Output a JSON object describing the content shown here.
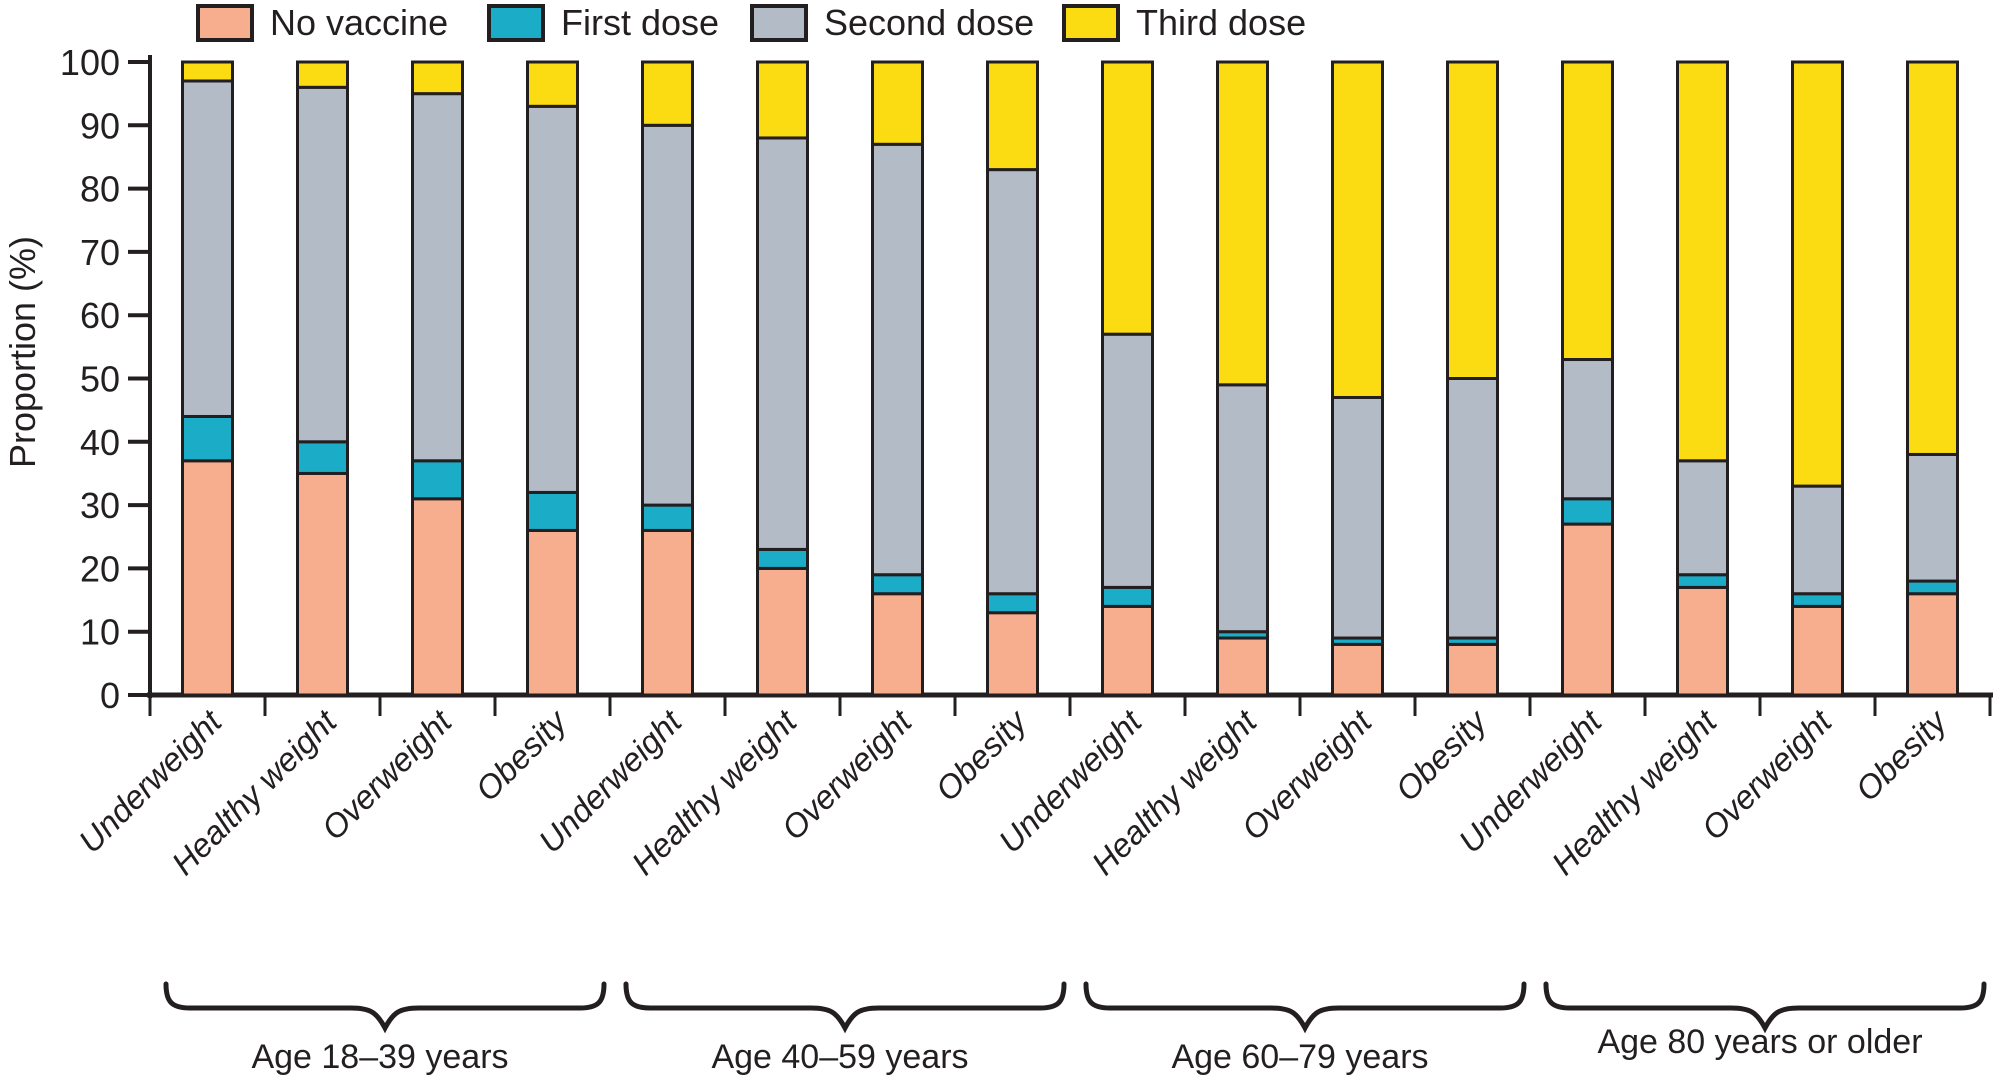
{
  "chart_data": {
    "type": "bar",
    "subtype": "stacked-percentage-grouped",
    "ylabel": "Proportion (%)",
    "ylim": [
      0,
      100
    ],
    "yticks": [
      0,
      10,
      20,
      30,
      40,
      50,
      60,
      70,
      80,
      90,
      100
    ],
    "grid": false,
    "legend_position": "top",
    "axis_color": "#231F20",
    "legend": [
      {
        "key": "no-vaccine",
        "label": "No vaccine",
        "color": "#F6AE8E"
      },
      {
        "key": "first-dose",
        "label": "First dose",
        "color": "#1BADC8"
      },
      {
        "key": "second-dose",
        "label": "Second dose",
        "color": "#B3BCC6"
      },
      {
        "key": "third-dose",
        "label": "Third dose",
        "color": "#FBDB12"
      }
    ],
    "stack_order_note": "values arrays follow legend order, bottom to top",
    "groups": [
      {
        "label": "Age 18–39 years",
        "bars": [
          {
            "category": "Underweight",
            "values": [
              37,
              7,
              53,
              3
            ]
          },
          {
            "category": "Healthy weight",
            "values": [
              35,
              5,
              56,
              4
            ]
          },
          {
            "category": "Overweight",
            "values": [
              31,
              6,
              58,
              5
            ]
          },
          {
            "category": "Obesity",
            "values": [
              26,
              6,
              61,
              7
            ]
          }
        ]
      },
      {
        "label": "Age 40–59 years",
        "bars": [
          {
            "category": "Underweight",
            "values": [
              26,
              4,
              60,
              10
            ]
          },
          {
            "category": "Healthy weight",
            "values": [
              20,
              3,
              65,
              12
            ]
          },
          {
            "category": "Overweight",
            "values": [
              16,
              3,
              68,
              13
            ]
          },
          {
            "category": "Obesity",
            "values": [
              13,
              3,
              67,
              17
            ]
          }
        ]
      },
      {
        "label": "Age 60–79 years",
        "bars": [
          {
            "category": "Underweight",
            "values": [
              14,
              3,
              40,
              43
            ]
          },
          {
            "category": "Healthy weight",
            "values": [
              9,
              1,
              39,
              51
            ]
          },
          {
            "category": "Overweight",
            "values": [
              8,
              1,
              38,
              53
            ]
          },
          {
            "category": "Obesity",
            "values": [
              8,
              1,
              41,
              50
            ]
          }
        ]
      },
      {
        "label": "Age 80 years or older",
        "bars": [
          {
            "category": "Underweight",
            "values": [
              27,
              4,
              22,
              47
            ]
          },
          {
            "category": "Healthy weight",
            "values": [
              17,
              2,
              18,
              63
            ]
          },
          {
            "category": "Overweight",
            "values": [
              14,
              2,
              17,
              67
            ]
          },
          {
            "category": "Obesity",
            "values": [
              16,
              2,
              20,
              62
            ]
          }
        ]
      }
    ]
  }
}
